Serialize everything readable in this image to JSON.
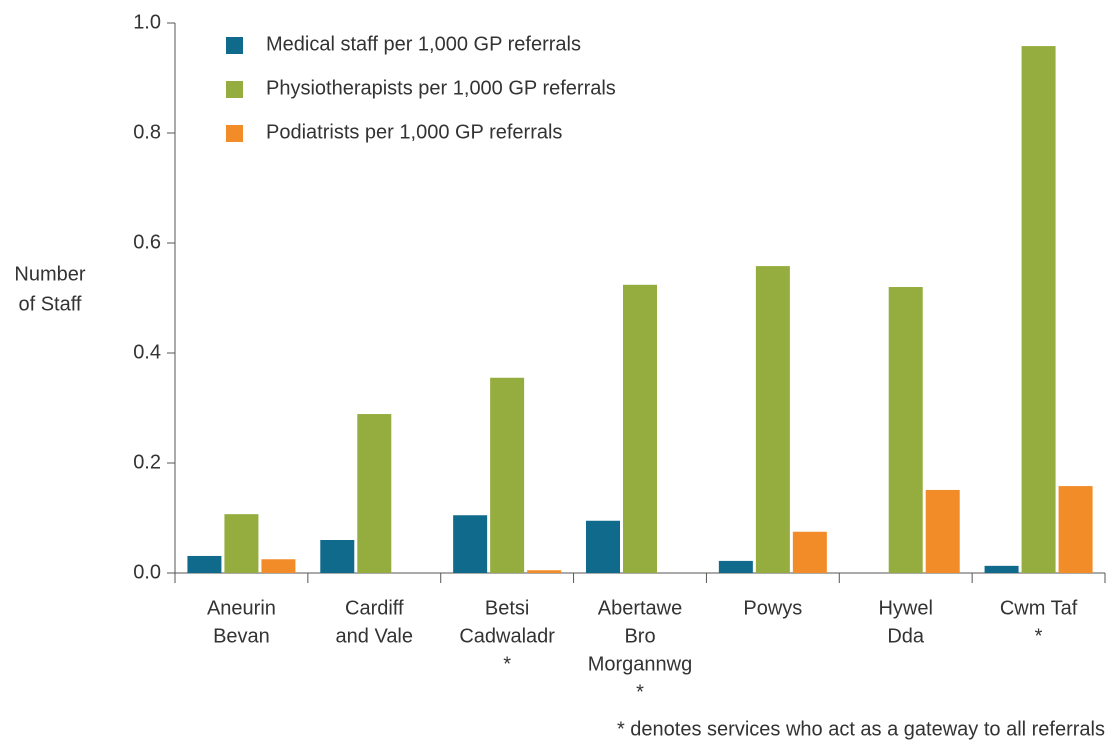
{
  "chart_data": {
    "type": "bar",
    "y_label": [
      "Number",
      "of Staff"
    ],
    "categories": [
      [
        "Aneurin",
        "Bevan"
      ],
      [
        "Cardiff",
        "and Vale"
      ],
      [
        "Betsi",
        "Cadwaladr",
        "*"
      ],
      [
        "Abertawe",
        "Bro",
        "Morgannwg",
        "*"
      ],
      [
        "Powys"
      ],
      [
        "Hywel",
        "Dda"
      ],
      [
        "Cwm Taf",
        "*"
      ]
    ],
    "series": [
      {
        "name": "Medical staff per 1,000 GP referrals",
        "color": "#0f6a8c",
        "values": [
          0.031,
          0.06,
          0.105,
          0.095,
          0.022,
          0,
          0.013
        ]
      },
      {
        "name": "Physiotherapists per 1,000 GP referrals",
        "color": "#95ad3e",
        "values": [
          0.107,
          0.289,
          0.355,
          0.524,
          0.558,
          0.52,
          0.958
        ]
      },
      {
        "name": "Podiatrists per 1,000 GP referrals",
        "color": "#f28c28",
        "values": [
          0.025,
          0,
          0.005,
          0,
          0.075,
          0.151,
          0.158
        ]
      }
    ],
    "ylim": [
      0,
      1
    ],
    "yticks": [
      {
        "value": 0,
        "label": "0.0"
      },
      0.2,
      0.4,
      0.6,
      0.8,
      {
        "value": 1,
        "label": "1.0"
      }
    ],
    "legend": "top-left",
    "footnote": "* denotes services who act as a gateway to all referrals"
  }
}
